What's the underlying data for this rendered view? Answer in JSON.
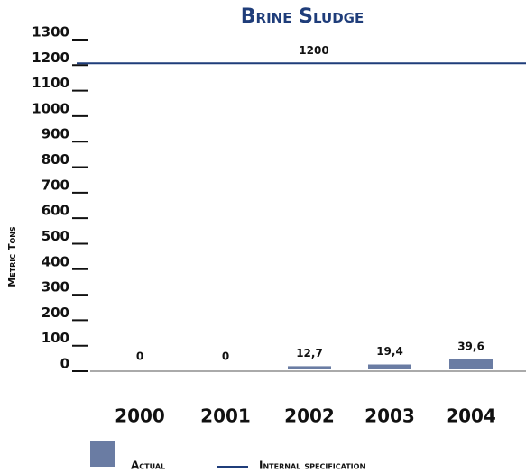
{
  "chart_data": {
    "type": "bar",
    "title": "Brine Sludge",
    "y_label": "Metric Tons",
    "categories": [
      "2000",
      "2001",
      "2002",
      "2003",
      "2004"
    ],
    "series": [
      {
        "name": "Actual",
        "color": "#6a7ca3",
        "values": [
          0,
          0,
          12.7,
          19.4,
          39.6
        ],
        "value_labels": [
          "0",
          "0",
          "12,7",
          "19,4",
          "39,6"
        ]
      }
    ],
    "reference_line": {
      "name": "Internal specification",
      "value": 1200,
      "color": "#1f3d7a"
    },
    "ylim": [
      0,
      1300
    ],
    "yticks": [
      0,
      100,
      200,
      300,
      400,
      500,
      600,
      700,
      800,
      900,
      1000,
      1100,
      1200,
      1300
    ]
  }
}
